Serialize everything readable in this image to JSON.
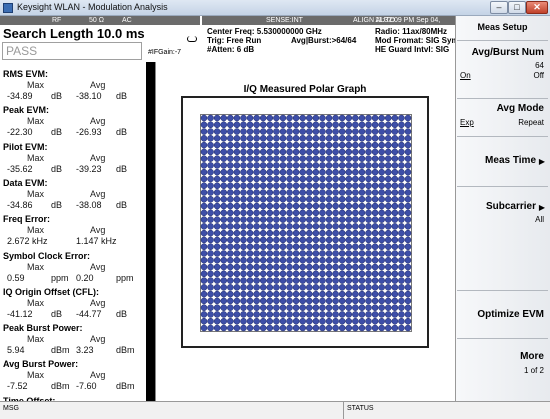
{
  "window": {
    "title": "Keysight WLAN - Modulation Analysis",
    "min_glyph": "–",
    "max_glyph": "□",
    "close_glyph": "✕"
  },
  "input_strip": {
    "port": "RF",
    "impedance": "50 Ω",
    "coupling": "AC"
  },
  "sense_strip": {
    "sense": "SENSE:INT",
    "align": "ALIGN AUTO",
    "timestamp": "11:32:09 PM Sep 04, 2017"
  },
  "measurement": {
    "title": "Search Length 10.0 ms",
    "verdict": "PASS",
    "if_gain": "#IFGain:-7",
    "center_freq": "Center Freq: 5.530000000 GHz",
    "trigger": "Trig: Free Run",
    "avg_burst": "Avg|Burst:>64/64",
    "atten": "#Atten: 6 dB",
    "radio": "Radio: 11ax/80MHz",
    "mod_format": "Mod Fromat: SIG Syms",
    "he_guard": "HE Guard Intvl: SIG"
  },
  "results": {
    "rms_evm": {
      "label": "RMS EVM:",
      "max_label": "Max",
      "avg_label": "Avg",
      "max": "-34.89",
      "max_unit": "dB",
      "avg": "-38.10",
      "avg_unit": "dB"
    },
    "peak_evm": {
      "label": "Peak EVM:",
      "max_label": "Max",
      "avg_label": "Avg",
      "max": "-22.30",
      "max_unit": "dB",
      "avg": "-26.93",
      "avg_unit": "dB"
    },
    "pilot_evm": {
      "label": "Pilot EVM:",
      "max_label": "Max",
      "avg_label": "Avg",
      "max": "-35.62",
      "max_unit": "dB",
      "avg": "-39.23",
      "avg_unit": "dB"
    },
    "data_evm": {
      "label": "Data EVM:",
      "max_label": "Max",
      "avg_label": "Avg",
      "max": "-34.86",
      "max_unit": "dB",
      "avg": "-38.08",
      "avg_unit": "dB"
    },
    "freq_error": {
      "label": "Freq Error:",
      "max_label": "Max",
      "avg_label": "Avg",
      "max": "2.672 kHz",
      "avg": "1.147 kHz"
    },
    "symbol_clock_error": {
      "label": "Symbol Clock Error:",
      "max_label": "Max",
      "avg_label": "Avg",
      "max": "0.59",
      "max_unit": "ppm",
      "avg": "0.20",
      "avg_unit": "ppm"
    },
    "iq_origin_offset": {
      "label": "IQ Origin Offset (CFL):",
      "max_label": "Max",
      "avg_label": "Avg",
      "max": "-41.12",
      "max_unit": "dB",
      "avg": "-44.77",
      "avg_unit": "dB"
    },
    "peak_burst_power": {
      "label": "Peak Burst Power:",
      "max_label": "Max",
      "avg_label": "Avg",
      "max": "5.94",
      "max_unit": "dBm",
      "avg": "3.23",
      "avg_unit": "dBm"
    },
    "avg_burst_power": {
      "label": "Avg Burst Power:",
      "max_label": "Max",
      "avg_label": "Avg",
      "max": "-7.52",
      "max_unit": "dBm",
      "avg": "-7.60",
      "avg_unit": "dBm"
    },
    "time_offset": {
      "label": "Time Offset:"
    }
  },
  "plot": {
    "title": "I/Q Measured Polar Graph",
    "grid_size": 32,
    "marker_color": "#3d4ea8",
    "marker_edge_color": "#1c2766"
  },
  "menu": {
    "title": "Meas Setup",
    "avg_burst_num": {
      "label": "Avg/Burst Num",
      "value": "64",
      "left_option": "On",
      "right_option": "Off"
    },
    "avg_mode": {
      "label": "Avg Mode",
      "left_option": "Exp",
      "right_option": "Repeat"
    },
    "meas_time": {
      "label": "Meas Time",
      "arrow": "▶"
    },
    "subcarrier": {
      "label": "Subcarrier",
      "value": "All",
      "arrow": "▶"
    },
    "optimize_evm": {
      "label": "Optimize EVM"
    },
    "more": {
      "label": "More",
      "page": "1 of 2"
    }
  },
  "status": {
    "msg_label": "MSG",
    "status_label": "STATUS"
  }
}
